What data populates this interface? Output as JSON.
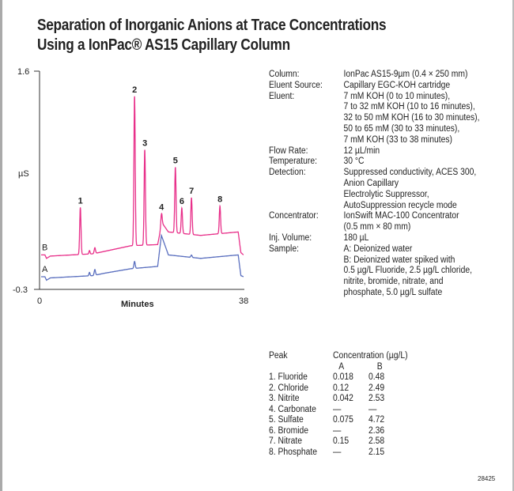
{
  "title": {
    "line1": "Separation of Inorganic Anions at Trace Concentrations",
    "line2": "Using a IonPac® AS15 Capillary Column"
  },
  "chart_data": {
    "type": "line",
    "xlabel": "Minutes",
    "ylabel": "µS",
    "xlim": [
      0,
      38
    ],
    "ylim": [
      -0.3,
      1.6
    ],
    "x_ticks": [
      "0",
      "38"
    ],
    "y_ticks": [
      "1.6",
      "-0.3"
    ],
    "series": [
      {
        "name": "B",
        "color": "#e8308a",
        "baseline": [
          [
            0,
            0.0
          ],
          [
            1,
            0.0
          ],
          [
            1.3,
            -0.03
          ],
          [
            2,
            -0.01
          ],
          [
            10,
            0.01
          ],
          [
            12,
            0.03
          ],
          [
            17,
            0.08
          ],
          [
            22,
            0.09
          ],
          [
            22.8,
            0.28
          ],
          [
            24,
            0.2
          ],
          [
            30,
            0.17
          ],
          [
            37,
            0.2
          ],
          [
            37.5,
            0.02
          ],
          [
            38,
            0.0
          ]
        ],
        "peaks": [
          {
            "label": "1",
            "t": 7.6,
            "h": 0.41
          },
          {
            "label": "2",
            "t": 17.7,
            "h": 1.3
          },
          {
            "label": "3",
            "t": 19.6,
            "h": 0.83
          },
          {
            "label": "4",
            "t": 22.7,
            "h": 0.1
          },
          {
            "label": "5",
            "t": 25.3,
            "h": 0.57
          },
          {
            "label": "6",
            "t": 26.5,
            "h": 0.22
          },
          {
            "label": "7",
            "t": 28.3,
            "h": 0.32
          },
          {
            "label": "8",
            "t": 33.6,
            "h": 0.24
          }
        ]
      },
      {
        "name": "A",
        "color": "#5a6fbf",
        "baseline": [
          [
            0,
            -0.19
          ],
          [
            1,
            -0.19
          ],
          [
            1.3,
            -0.22
          ],
          [
            2,
            -0.2
          ],
          [
            10,
            -0.18
          ],
          [
            12,
            -0.16
          ],
          [
            17,
            -0.12
          ],
          [
            22,
            -0.1
          ],
          [
            22.7,
            0.17
          ],
          [
            24,
            0.0
          ],
          [
            30,
            -0.03
          ],
          [
            37,
            0.0
          ],
          [
            37.5,
            -0.18
          ],
          [
            38,
            -0.19
          ]
        ],
        "peaks": [
          {
            "label": "",
            "t": 17.7,
            "h": 0.06
          },
          {
            "label": "",
            "t": 28.3,
            "h": 0.02
          }
        ]
      }
    ]
  },
  "conditions": [
    {
      "label": "Column:",
      "lines": [
        "IonPac AS15-9µm (0.4 × 250 mm)"
      ]
    },
    {
      "label": "Eluent Source:",
      "lines": [
        "Capillary EGC-KOH cartridge"
      ]
    },
    {
      "label": "Eluent:",
      "lines": [
        "7 mM KOH (0 to 10 minutes),",
        "7 to 32 mM KOH (10 to 16 minutes),",
        "32 to 50 mM KOH (16 to 30 minutes),",
        "50 to  65 mM (30 to 33 minutes),",
        "7 mM KOH (33 to 38 minutes)"
      ]
    },
    {
      "label": "Flow Rate:",
      "lines": [
        "12 µL/min"
      ]
    },
    {
      "label": "Temperature:",
      "lines": [
        "30 °C"
      ]
    },
    {
      "label": "Detection:",
      "lines": [
        "Suppressed conductivity, ACES 300,",
        "Anion Capillary",
        "Electrolytic Suppressor,",
        "AutoSuppression recycle mode"
      ]
    },
    {
      "label": "Concentrator:",
      "lines": [
        "IonSwift MAC-100 Concentrator",
        "(0.5 mm × 80 mm)"
      ]
    },
    {
      "label": "Inj. Volume:",
      "lines": [
        "180 µL"
      ]
    },
    {
      "label": "Sample:",
      "lines": [
        "A: Deionized water",
        "B: Deionized water spiked with",
        "0.5 µg/L Fluoride, 2.5 µg/L chloride,",
        "nitrite, bromide, nitrate, and",
        "phosphate, 5.0 µg/L sulfate"
      ]
    }
  ],
  "peak_table": {
    "header": "Peak",
    "conc_header": "Concentration (µg/L)",
    "col_a": "A",
    "col_b": "B",
    "rows": [
      [
        "1. Fluoride",
        "0.018",
        "0.48"
      ],
      [
        "2. Chloride",
        "0.12",
        "2.49"
      ],
      [
        "3. Nitrite",
        "0.042",
        "2.53"
      ],
      [
        "4. Carbonate",
        "—",
        "—"
      ],
      [
        "5. Sulfate",
        "0.075",
        "4.72"
      ],
      [
        "6. Bromide",
        "—",
        "2.36"
      ],
      [
        "7. Nitrate",
        "0.15",
        "2.58"
      ],
      [
        "8. Phosphate",
        "—",
        "2.15"
      ]
    ]
  },
  "code": "28425"
}
